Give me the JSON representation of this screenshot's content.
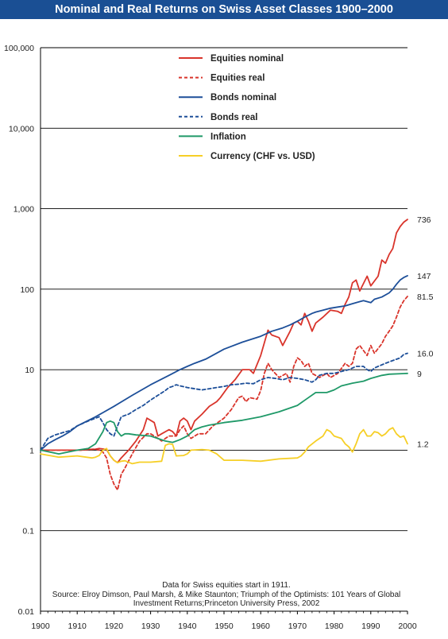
{
  "chart_data": {
    "type": "line",
    "title": "Nominal and Real Returns on Swiss Asset Classes 1900–2000",
    "xlabel": "",
    "ylabel": "",
    "xlim": [
      1900,
      2000
    ],
    "ylim": [
      0.01,
      100000
    ],
    "yscale": "log",
    "x_tick_labels": [
      "1900",
      "1910",
      "1920",
      "1930",
      "1940",
      "1950",
      "1960",
      "1970",
      "1980",
      "1990",
      "2000"
    ],
    "y_tick_labels": [
      "100,000",
      "10,000",
      "1,000",
      "100",
      "10",
      "1",
      "0.1",
      "0.01"
    ],
    "y_tick_values": [
      100000,
      10000,
      1000,
      100,
      10,
      1,
      0.1,
      0.01
    ],
    "grid": "horizontal",
    "legend_position": "top-center",
    "series": [
      {
        "name": "Equities nominal",
        "color": "#d9342b",
        "style": "solid",
        "end_label": "736",
        "x": [
          1900,
          1911,
          1912,
          1915,
          1916,
          1918,
          1919,
          1920,
          1921,
          1922,
          1924,
          1926,
          1928,
          1929,
          1931,
          1932,
          1933,
          1935,
          1936,
          1937,
          1938,
          1939,
          1940,
          1941,
          1942,
          1944,
          1946,
          1948,
          1949,
          1951,
          1953,
          1955,
          1957,
          1958,
          1960,
          1962,
          1963,
          1965,
          1966,
          1968,
          1969,
          1970,
          1971,
          1972,
          1973,
          1974,
          1975,
          1977,
          1979,
          1981,
          1982,
          1983,
          1984,
          1985,
          1986,
          1987,
          1989,
          1990,
          1992,
          1993,
          1994,
          1995,
          1996,
          1997,
          1998,
          1999,
          2000
        ],
        "values": [
          1,
          1,
          1.02,
          1.03,
          1.05,
          1.02,
          0.85,
          0.75,
          0.7,
          0.8,
          1.0,
          1.3,
          1.8,
          2.5,
          2.2,
          1.5,
          1.6,
          1.8,
          1.7,
          1.5,
          2.3,
          2.5,
          2.3,
          1.8,
          2.3,
          2.8,
          3.5,
          4.0,
          4.5,
          6.0,
          7.5,
          10,
          10,
          9,
          15,
          31,
          27,
          25,
          20,
          30,
          38,
          40,
          36,
          50,
          40,
          30,
          38,
          45,
          55,
          53,
          50,
          65,
          80,
          120,
          130,
          95,
          145,
          110,
          145,
          230,
          210,
          270,
          320,
          500,
          600,
          680,
          736
        ]
      },
      {
        "name": "Equities real",
        "color": "#d9342b",
        "style": "dashed",
        "end_label": "81.5",
        "x": [
          1900,
          1911,
          1913,
          1915,
          1916,
          1917,
          1918,
          1919,
          1920,
          1921,
          1922,
          1923,
          1925,
          1927,
          1929,
          1930,
          1931,
          1933,
          1935,
          1937,
          1938,
          1939,
          1940,
          1941,
          1943,
          1945,
          1947,
          1950,
          1952,
          1954,
          1955,
          1956,
          1957,
          1959,
          1960,
          1961,
          1962,
          1963,
          1965,
          1967,
          1968,
          1969,
          1970,
          1971,
          1972,
          1973,
          1974,
          1976,
          1978,
          1979,
          1981,
          1983,
          1984,
          1985,
          1986,
          1987,
          1989,
          1990,
          1991,
          1993,
          1994,
          1995,
          1996,
          1997,
          1998,
          1999,
          2000
        ],
        "values": [
          1,
          1,
          1.02,
          1.03,
          1.0,
          0.95,
          0.8,
          0.5,
          0.38,
          0.32,
          0.5,
          0.6,
          0.9,
          1.3,
          1.6,
          1.6,
          1.5,
          1.3,
          1.5,
          1.5,
          1.8,
          2.0,
          1.6,
          1.4,
          1.6,
          1.6,
          2.0,
          2.5,
          3.2,
          4.5,
          4.7,
          4.0,
          4.5,
          4.3,
          5.5,
          9,
          12,
          10,
          8,
          9,
          7,
          11,
          14,
          13,
          11,
          12,
          9,
          8,
          9,
          8,
          9,
          12,
          11,
          12,
          18,
          20,
          15,
          20,
          16,
          21,
          26,
          30,
          35,
          45,
          60,
          72,
          81.5
        ]
      },
      {
        "name": "Bonds nominal",
        "color": "#1d4f99",
        "style": "solid",
        "end_label": "147",
        "x": [
          1900,
          1902,
          1904,
          1906,
          1908,
          1910,
          1915,
          1920,
          1925,
          1930,
          1935,
          1938,
          1940,
          1942,
          1945,
          1950,
          1955,
          1960,
          1963,
          1966,
          1968,
          1970,
          1972,
          1974,
          1975,
          1977,
          1979,
          1981,
          1983,
          1985,
          1987,
          1988,
          1989,
          1990,
          1991,
          1993,
          1995,
          1996,
          1997,
          1998,
          1999,
          2000
        ],
        "values": [
          1,
          1.2,
          1.35,
          1.5,
          1.7,
          2.0,
          2.6,
          3.5,
          4.8,
          6.5,
          8.5,
          10,
          11,
          12,
          13.5,
          18,
          22,
          26,
          30,
          33,
          36,
          40,
          45,
          50,
          52,
          55,
          58,
          60,
          62,
          66,
          70,
          72,
          70,
          68,
          75,
          80,
          90,
          100,
          115,
          130,
          140,
          147
        ]
      },
      {
        "name": "Bonds real",
        "color": "#1d4f99",
        "style": "dashed",
        "end_label": "16.0",
        "x": [
          1900,
          1902,
          1904,
          1906,
          1908,
          1910,
          1912,
          1914,
          1916,
          1917,
          1918,
          1919,
          1920,
          1921,
          1922,
          1924,
          1926,
          1928,
          1930,
          1932,
          1934,
          1935,
          1936,
          1937,
          1938,
          1940,
          1942,
          1944,
          1946,
          1948,
          1950,
          1952,
          1954,
          1956,
          1958,
          1960,
          1962,
          1964,
          1966,
          1968,
          1970,
          1972,
          1974,
          1975,
          1976,
          1978,
          1980,
          1982,
          1984,
          1986,
          1988,
          1989,
          1990,
          1991,
          1992,
          1994,
          1996,
          1998,
          1999,
          2000
        ],
        "values": [
          1,
          1.4,
          1.55,
          1.65,
          1.75,
          2.0,
          2.2,
          2.4,
          2.6,
          2.2,
          1.8,
          1.6,
          1.5,
          2.0,
          2.6,
          2.8,
          3.2,
          3.6,
          4.2,
          4.8,
          5.5,
          6.0,
          6.2,
          6.5,
          6.3,
          6.0,
          5.8,
          5.6,
          5.8,
          6.0,
          6.2,
          6.5,
          6.6,
          6.8,
          6.7,
          7.5,
          8.0,
          7.8,
          7.5,
          8.0,
          7.8,
          7.5,
          7.0,
          7.5,
          8.5,
          9.0,
          9.0,
          9.5,
          10.0,
          11.0,
          11.0,
          10.0,
          9.5,
          10.5,
          11.0,
          12.0,
          13.0,
          14.0,
          15.5,
          16.0
        ]
      },
      {
        "name": "Inflation",
        "color": "#1f9968",
        "style": "solid",
        "end_label": "9",
        "x": [
          1900,
          1905,
          1910,
          1913,
          1915,
          1917,
          1918,
          1919,
          1920,
          1921,
          1922,
          1923,
          1924,
          1926,
          1930,
          1934,
          1936,
          1938,
          1940,
          1942,
          1944,
          1946,
          1950,
          1955,
          1960,
          1965,
          1970,
          1973,
          1975,
          1978,
          1980,
          1982,
          1985,
          1988,
          1990,
          1993,
          1995,
          2000
        ],
        "values": [
          1,
          0.9,
          1.0,
          1.05,
          1.2,
          1.7,
          2.2,
          2.3,
          2.2,
          1.7,
          1.5,
          1.6,
          1.6,
          1.55,
          1.5,
          1.3,
          1.25,
          1.35,
          1.5,
          1.8,
          1.95,
          2.05,
          2.2,
          2.35,
          2.6,
          3.0,
          3.6,
          4.5,
          5.2,
          5.2,
          5.6,
          6.3,
          6.8,
          7.2,
          7.8,
          8.5,
          8.8,
          9
        ]
      },
      {
        "name": "Currency (CHF vs. USD)",
        "color": "#f6cf26",
        "style": "solid",
        "end_label": "1.2",
        "x": [
          1900,
          1905,
          1910,
          1914,
          1915,
          1916,
          1917,
          1918,
          1919,
          1920,
          1921,
          1922,
          1923,
          1925,
          1927,
          1930,
          1933,
          1934,
          1935,
          1936,
          1937,
          1939,
          1940,
          1941,
          1944,
          1946,
          1948,
          1950,
          1955,
          1960,
          1965,
          1970,
          1971,
          1972,
          1973,
          1975,
          1977,
          1978,
          1979,
          1980,
          1982,
          1983,
          1984,
          1985,
          1986,
          1987,
          1988,
          1989,
          1990,
          1991,
          1992,
          1993,
          1994,
          1995,
          1996,
          1997,
          1998,
          1999,
          2000
        ],
        "values": [
          0.9,
          0.82,
          0.85,
          0.8,
          0.82,
          0.86,
          1.0,
          1.05,
          0.85,
          0.75,
          0.7,
          0.73,
          0.74,
          0.68,
          0.71,
          0.71,
          0.73,
          1.15,
          1.2,
          1.18,
          0.85,
          0.86,
          0.9,
          1.0,
          1.02,
          1.0,
          0.9,
          0.75,
          0.75,
          0.73,
          0.78,
          0.8,
          0.85,
          0.95,
          1.1,
          1.3,
          1.5,
          1.8,
          1.7,
          1.5,
          1.4,
          1.2,
          1.1,
          0.95,
          1.2,
          1.6,
          1.8,
          1.5,
          1.5,
          1.7,
          1.65,
          1.5,
          1.6,
          1.8,
          1.9,
          1.6,
          1.45,
          1.5,
          1.2
        ]
      }
    ],
    "footer": [
      "Data for Swiss equities start in 1911.",
      "Source: Elroy Dimson, Paul Marsh, & Mike Staunton; Triumph of the Optimists: 101 Years of Global",
      "Investment Returns;Princeton University Press, 2002"
    ]
  }
}
